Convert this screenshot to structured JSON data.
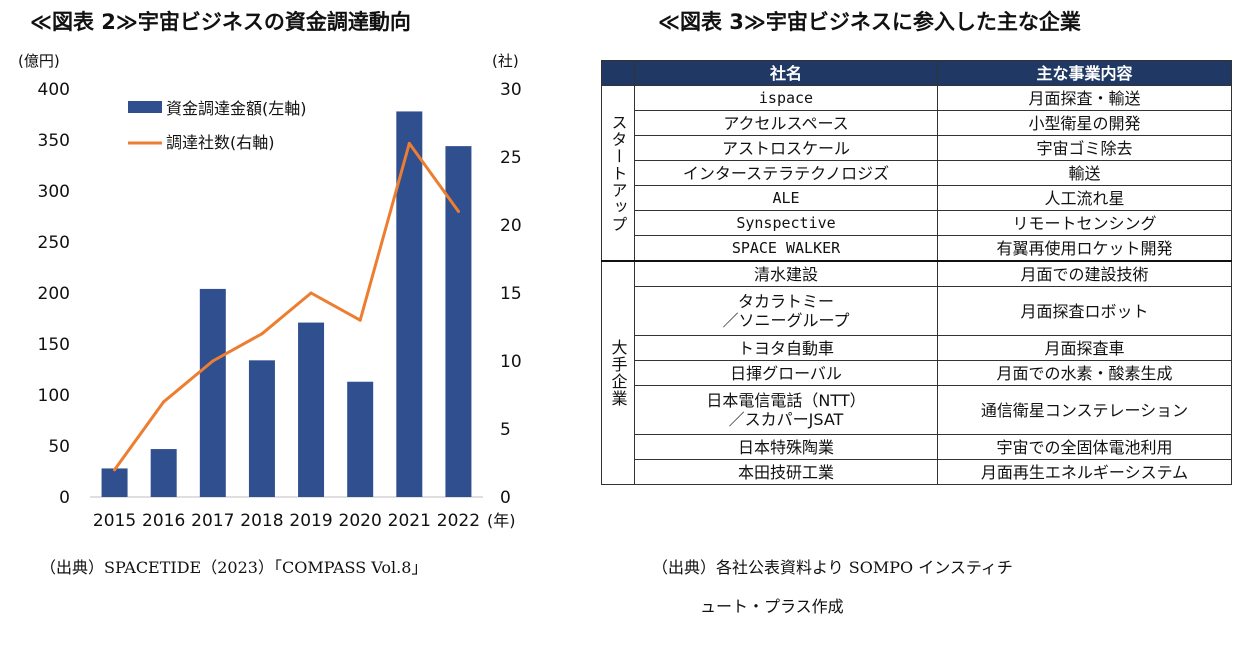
{
  "figure2": {
    "title": "≪図表 2≫宇宙ビジネスの資金調達動向",
    "source": "（出典）SPACETIDE（2023）「COMPASS Vol.8」"
  },
  "figure3": {
    "title": "≪図表 3≫宇宙ビジネスに参入した主な企業",
    "source_line1": "（出典）各社公表資料より SOMPO インスティチ",
    "source_line2": "ュート・プラス作成",
    "header": {
      "name": "社名",
      "business": "主な事業内容"
    },
    "groups": [
      {
        "label": "スタートアップ",
        "rows": [
          {
            "name": "ispace",
            "business": "月面探査・輸送"
          },
          {
            "name": "アクセルスペース",
            "business": "小型衛星の開発"
          },
          {
            "name": "アストロスケール",
            "business": "宇宙ゴミ除去"
          },
          {
            "name": "インターステラテクノロジズ",
            "business": "輸送"
          },
          {
            "name": "ALE",
            "business": "人工流れ星"
          },
          {
            "name": "Synspective",
            "business": "リモートセンシング"
          },
          {
            "name": "SPACE WALKER",
            "business": "有翼再使用ロケット開発"
          }
        ]
      },
      {
        "label": "大手企業",
        "rows": [
          {
            "name": "清水建設",
            "business": "月面での建設技術"
          },
          {
            "name": "タカラトミー\n／ソニーグループ",
            "business": "月面探査ロボット"
          },
          {
            "name": "トヨタ自動車",
            "business": "月面探査車"
          },
          {
            "name": "日揮グローバル",
            "business": "月面での水素・酸素生成"
          },
          {
            "name": "日本電信電話（NTT）\n／スカパーJSAT",
            "business": "通信衛星コンステレーション"
          },
          {
            "name": "日本特殊陶業",
            "business": "宇宙での全固体電池利用"
          },
          {
            "name": "本田技研工業",
            "business": "月面再生エネルギーシステム"
          }
        ]
      }
    ]
  },
  "chart_data": {
    "type": "bar",
    "categories": [
      "2015",
      "2016",
      "2017",
      "2018",
      "2019",
      "2020",
      "2021",
      "2022"
    ],
    "series": [
      {
        "name": "資金調達金額(左軸)",
        "type": "bar",
        "axis": "left",
        "color": "#2f4f8f",
        "values": [
          28,
          47,
          204,
          134,
          171,
          113,
          378,
          344
        ]
      },
      {
        "name": "調達社数(右軸)",
        "type": "line",
        "axis": "right",
        "color": "#ed7d31",
        "values": [
          2,
          7,
          10,
          12,
          15,
          13,
          26,
          21
        ]
      }
    ],
    "y_left": {
      "unit": "(億円)",
      "min": 0,
      "max": 400,
      "ticks": [
        0,
        50,
        100,
        150,
        200,
        250,
        300,
        350,
        400
      ]
    },
    "y_right": {
      "unit": "(社)",
      "min": 0,
      "max": 30,
      "ticks": [
        0,
        5,
        10,
        15,
        20,
        25,
        30
      ]
    },
    "x_unit": "(年)",
    "grid": false,
    "legend_position": "top-left"
  }
}
